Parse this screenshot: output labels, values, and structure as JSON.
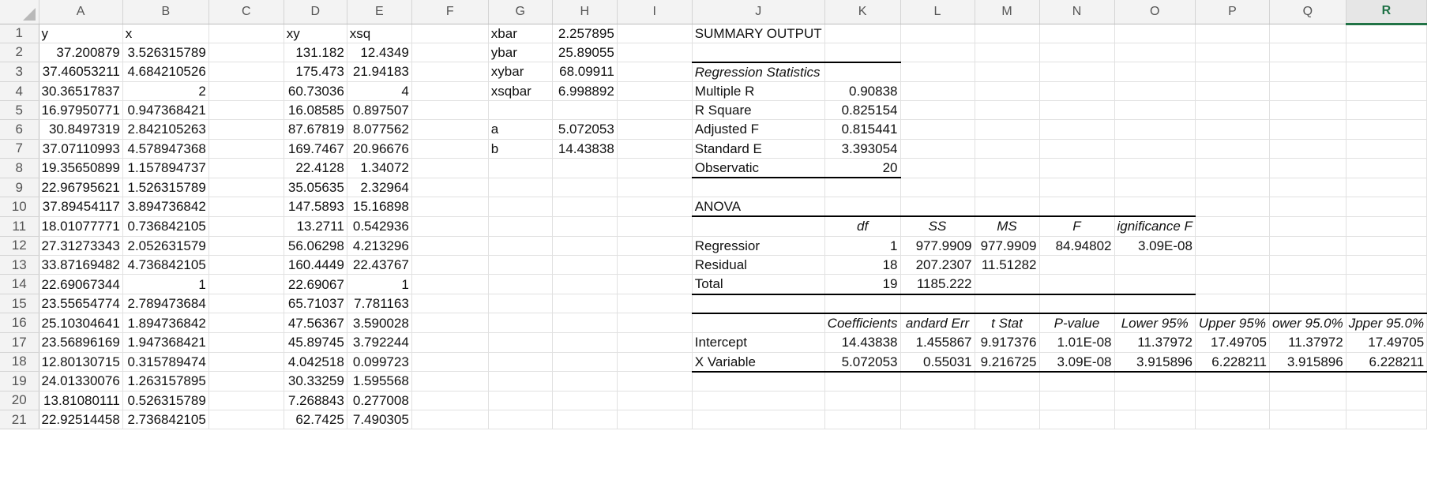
{
  "columns": [
    "A",
    "B",
    "C",
    "D",
    "E",
    "F",
    "G",
    "H",
    "I",
    "J",
    "K",
    "L",
    "M",
    "N",
    "O",
    "P",
    "Q",
    "R"
  ],
  "selected_column": "R",
  "rows": [
    {
      "A": "y",
      "B": "x",
      "D": "xy",
      "E": "xsq",
      "G": "xbar",
      "H": "2.257895",
      "J": "SUMMARY OUTPUT"
    },
    {
      "A": "37.200879",
      "B": "3.526315789",
      "D": "131.182",
      "E": "12.4349",
      "G": "ybar",
      "H": "25.89055"
    },
    {
      "A": "37.46053211",
      "B": "4.684210526",
      "D": "175.473",
      "E": "21.94183",
      "G": "xybar",
      "H": "68.09911",
      "J": "Regression Statistics"
    },
    {
      "A": "30.36517837",
      "B": "2",
      "D": "60.73036",
      "E": "4",
      "G": "xsqbar",
      "H": "6.998892",
      "J": "Multiple R",
      "K": "0.90838"
    },
    {
      "A": "16.97950771",
      "B": "0.947368421",
      "D": "16.08585",
      "E": "0.897507",
      "J": "R Square",
      "K": "0.825154"
    },
    {
      "A": "30.8497319",
      "B": "2.842105263",
      "D": "87.67819",
      "E": "8.077562",
      "G": "a",
      "H": "5.072053",
      "J": "Adjusted F",
      "K": "0.815441"
    },
    {
      "A": "37.07110993",
      "B": "4.578947368",
      "D": "169.7467",
      "E": "20.96676",
      "G": "b",
      "H": "14.43838",
      "J": "Standard E",
      "K": "3.393054"
    },
    {
      "A": "19.35650899",
      "B": "1.157894737",
      "D": "22.4128",
      "E": "1.34072",
      "J": "Observatic",
      "K": "20"
    },
    {
      "A": "22.96795621",
      "B": "1.526315789",
      "D": "35.05635",
      "E": "2.32964"
    },
    {
      "A": "37.89454117",
      "B": "3.894736842",
      "D": "147.5893",
      "E": "15.16898",
      "J": "ANOVA"
    },
    {
      "A": "18.01077771",
      "B": "0.736842105",
      "D": "13.2711",
      "E": "0.542936",
      "K": "df",
      "L": "SS",
      "M": "MS",
      "N": "F",
      "O": "ignificance F"
    },
    {
      "A": "27.31273343",
      "B": "2.052631579",
      "D": "56.06298",
      "E": "4.213296",
      "J": "Regressior",
      "K": "1",
      "L": "977.9909",
      "M": "977.9909",
      "N": "84.94802",
      "O": "3.09E-08"
    },
    {
      "A": "33.87169482",
      "B": "4.736842105",
      "D": "160.4449",
      "E": "22.43767",
      "J": "Residual",
      "K": "18",
      "L": "207.2307",
      "M": "11.51282"
    },
    {
      "A": "22.69067344",
      "B": "1",
      "D": "22.69067",
      "E": "1",
      "J": "Total",
      "K": "19",
      "L": "1185.222"
    },
    {
      "A": "23.55654774",
      "B": "2.789473684",
      "D": "65.71037",
      "E": "7.781163"
    },
    {
      "A": "25.10304641",
      "B": "1.894736842",
      "D": "47.56367",
      "E": "3.590028",
      "K": "Coefficients",
      "L": "andard Err",
      "M": "t Stat",
      "N": "P-value",
      "O": "Lower 95%",
      "P": "Upper 95%",
      "Q": "ower 95.0%",
      "R": "Jpper 95.0%"
    },
    {
      "A": "23.56896169",
      "B": "1.947368421",
      "D": "45.89745",
      "E": "3.792244",
      "J": "Intercept",
      "K": "14.43838",
      "L": "1.455867",
      "M": "9.917376",
      "N": "1.01E-08",
      "O": "11.37972",
      "P": "17.49705",
      "Q": "11.37972",
      "R": "17.49705"
    },
    {
      "A": "12.80130715",
      "B": "0.315789474",
      "D": "4.042518",
      "E": "0.099723",
      "J": "X Variable",
      "K": "5.072053",
      "L": "0.55031",
      "M": "9.216725",
      "N": "3.09E-08",
      "O": "3.915896",
      "P": "6.228211",
      "Q": "3.915896",
      "R": "6.228211"
    },
    {
      "A": "24.01330076",
      "B": "1.263157895",
      "D": "30.33259",
      "E": "1.595568"
    },
    {
      "A": "13.81080111",
      "B": "0.526315789",
      "D": "7.268843",
      "E": "0.277008"
    },
    {
      "A": "22.92514458",
      "B": "2.736842105",
      "D": "62.7425",
      "E": "7.490305"
    }
  ]
}
